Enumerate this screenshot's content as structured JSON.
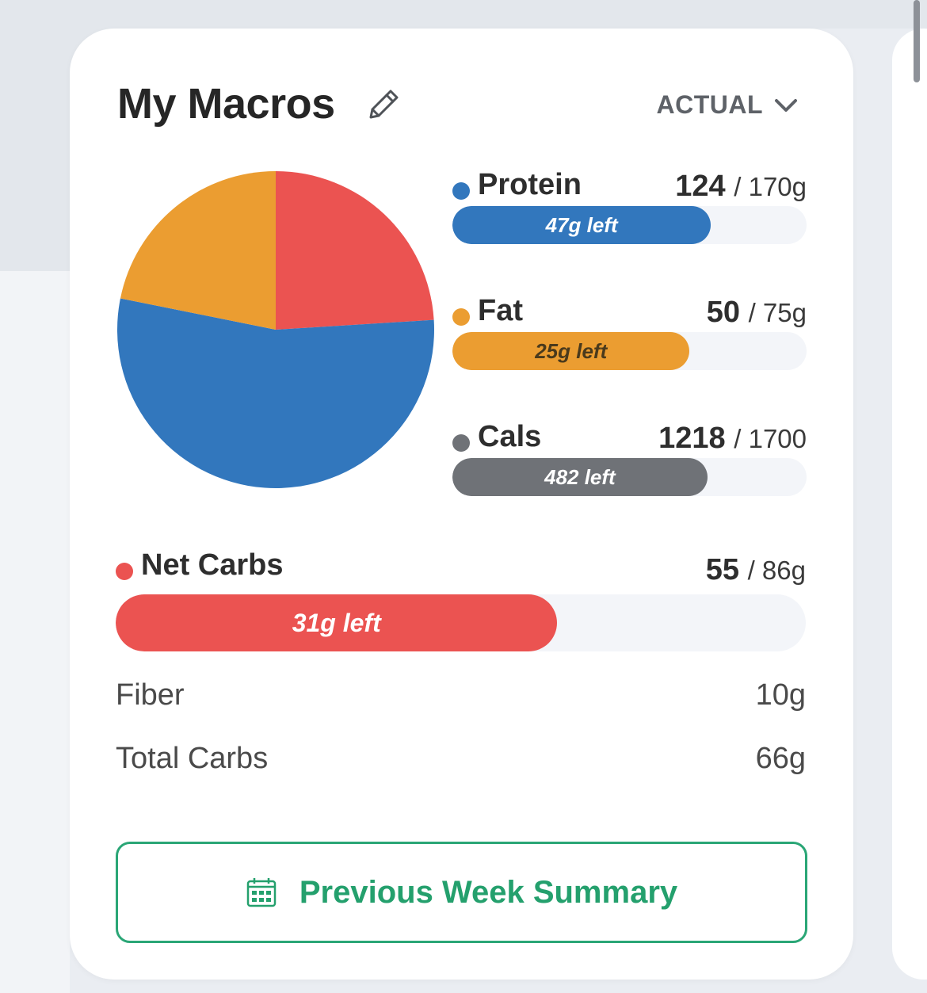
{
  "header": {
    "title": "My Macros",
    "view_mode": "ACTUAL"
  },
  "colors": {
    "protein": "#3277bd",
    "fat": "#eb9d31",
    "cals": "#6f7277",
    "net_carbs": "#eb5351",
    "button_accent": "#24a06d"
  },
  "macros": [
    {
      "key": "protein",
      "name": "Protein",
      "value": "124",
      "goal": "/ 170g",
      "left_label": "47g left",
      "progress": 0.73
    },
    {
      "key": "fat",
      "name": "Fat",
      "value": "50",
      "goal": "/ 75g",
      "left_label": "25g left",
      "progress": 0.67
    },
    {
      "key": "cals",
      "name": "Cals",
      "value": "1218",
      "goal": "/ 1700",
      "left_label": "482 left",
      "progress": 0.72
    }
  ],
  "net_carbs": {
    "name": "Net Carbs",
    "value": "55",
    "goal": "/ 86g",
    "left_label": "31g left",
    "progress": 0.64
  },
  "stats": [
    {
      "label": "Fiber",
      "value": "10g"
    },
    {
      "label": "Total Carbs",
      "value": "66g"
    }
  ],
  "summary_button": {
    "label": "Previous Week Summary",
    "icon": "calendar-icon"
  },
  "chart_data": {
    "type": "pie",
    "categories": [
      "Net Carbs",
      "Protein",
      "Fat"
    ],
    "values": [
      55,
      124,
      50
    ],
    "colors": [
      "#eb5351",
      "#3277bd",
      "#eb9d31"
    ]
  }
}
